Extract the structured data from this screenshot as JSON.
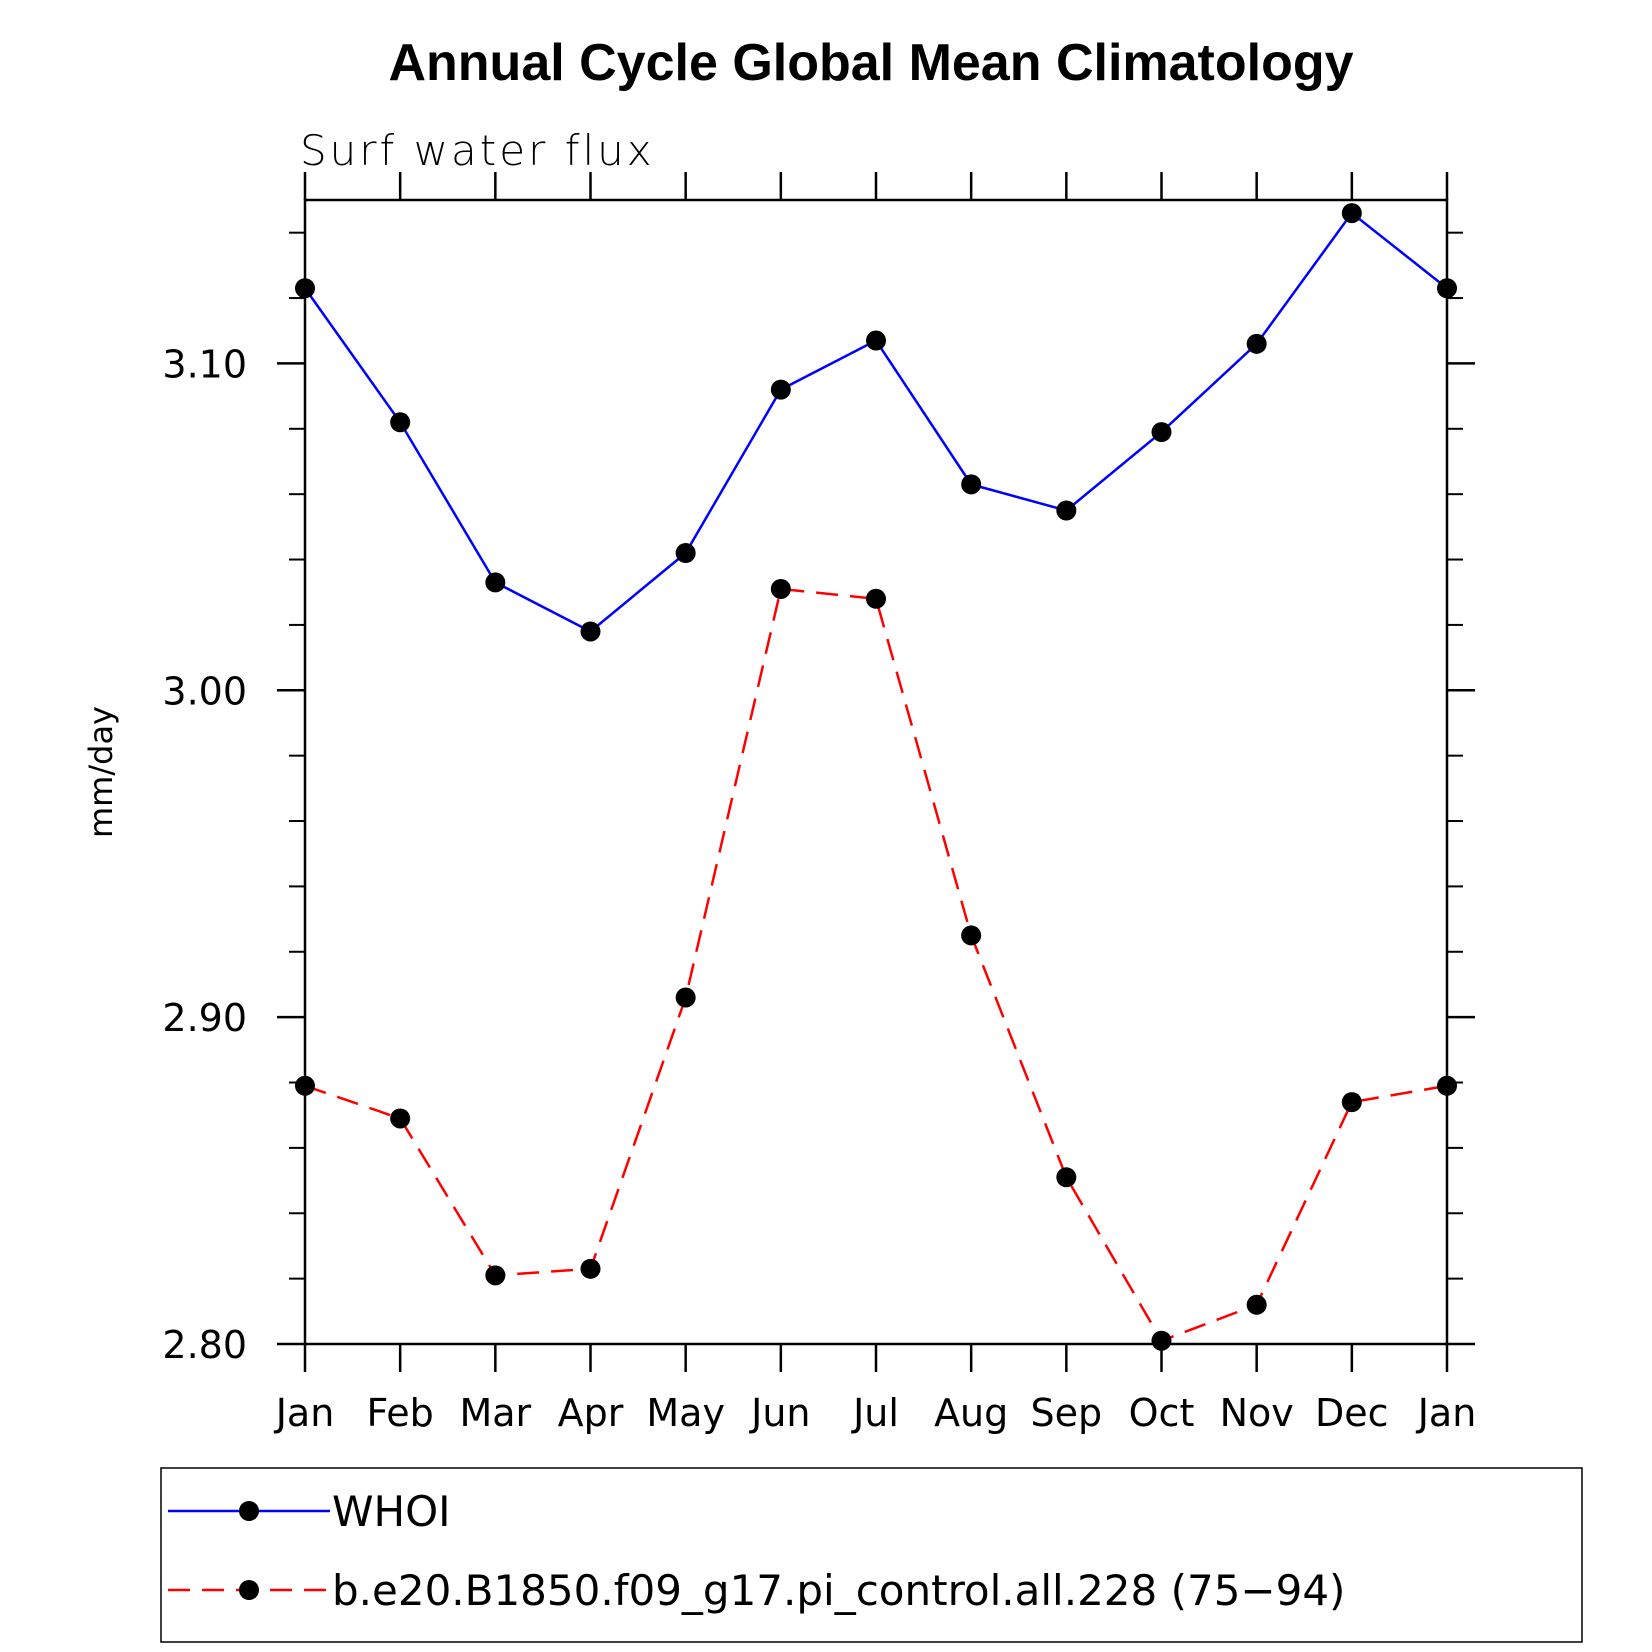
{
  "chart_data": {
    "type": "line",
    "title": "Annual Cycle Global Mean Climatology",
    "subtitle": "Surf  water  flux",
    "xlabel": "",
    "ylabel": "mm/day",
    "categories": [
      "Jan",
      "Feb",
      "Mar",
      "Apr",
      "May",
      "Jun",
      "Jul",
      "Aug",
      "Sep",
      "Oct",
      "Nov",
      "Dec",
      "Jan"
    ],
    "ylim": [
      2.8,
      3.15
    ],
    "y_ticks": [
      "2.80",
      "2.90",
      "3.00",
      "3.10"
    ],
    "series": [
      {
        "name": "WHOI",
        "color": "#0000ff",
        "style": "solid",
        "marker": "filled-circle",
        "values": [
          3.123,
          3.082,
          3.033,
          3.018,
          3.042,
          3.092,
          3.107,
          3.063,
          3.055,
          3.079,
          3.106,
          3.146,
          3.123
        ]
      },
      {
        "name": "b.e20.B1850.f09_g17.pi_control.all.228 (75−94)",
        "color": "#ff0000",
        "style": "dashed",
        "marker": "filled-circle",
        "values": [
          2.879,
          2.869,
          2.821,
          2.823,
          2.906,
          3.031,
          3.028,
          2.925,
          2.851,
          2.801,
          2.812,
          2.874,
          2.879
        ]
      }
    ],
    "grid": false,
    "legend_position": "bottom"
  }
}
